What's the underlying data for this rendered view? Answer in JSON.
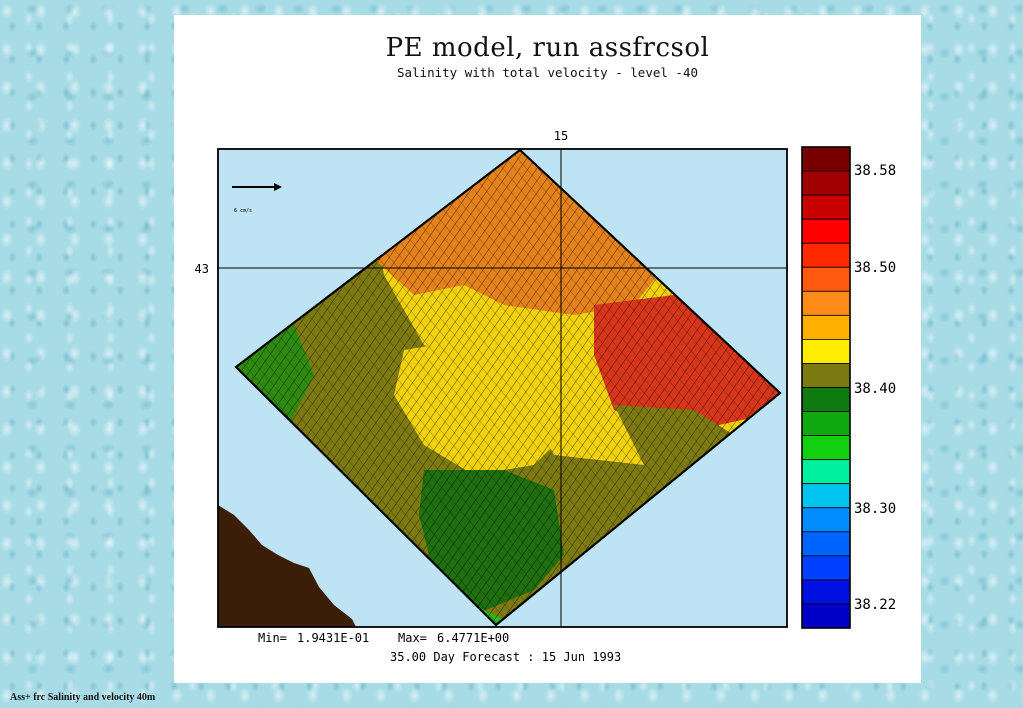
{
  "title": "PE model, run assfrcsol",
  "subtitle": "Salinity with total velocity  - level -40",
  "axes": {
    "lon_label": "15",
    "lat_label": "43"
  },
  "reference_vector": {
    "label": "6 cm/s"
  },
  "stats": {
    "min_label": "Min=",
    "min_value": "1.9431E-01",
    "max_label": "Max=",
    "max_value": "6.4771E+00"
  },
  "forecast": "35.00 Day Forecast : 15 Jun 1993",
  "colorbar": {
    "labels": [
      "38.58",
      "38.50",
      "38.40",
      "38.30",
      "38.22"
    ],
    "colors": [
      "#7a0000",
      "#a10000",
      "#c80000",
      "#ff0000",
      "#ff2a00",
      "#ff5a10",
      "#ff8a18",
      "#ffb000",
      "#ffee00",
      "#7a7a10",
      "#0e7a10",
      "#10aa10",
      "#10d010",
      "#00f0a0",
      "#00c4f0",
      "#008cff",
      "#0064ff",
      "#0040ff",
      "#0010e0",
      "#0000c8"
    ]
  },
  "colors": {
    "ocean": "#bde3f4",
    "land": "#3a1e08",
    "olive": "#7d7a12",
    "green": "#2f8a12",
    "yellow": "#f2d20a",
    "orange": "#e5821c",
    "red": "#d8361a"
  },
  "footer": "Ass+ frc  Salinity and velocity 40m"
}
